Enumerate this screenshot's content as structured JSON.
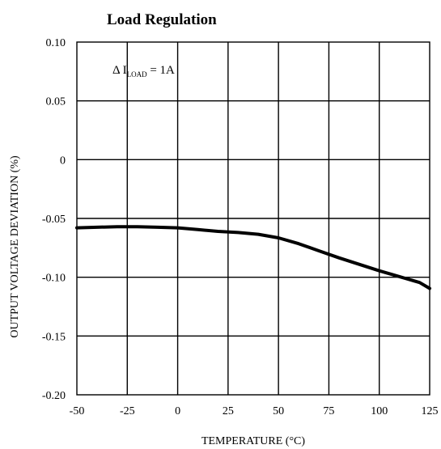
{
  "chart_data": {
    "type": "line",
    "title": "Load Regulation",
    "xlabel": "TEMPERATURE (°C)",
    "ylabel": "OUTPUT VOLTAGE DEVIATION (%)",
    "xlim": [
      -50,
      125
    ],
    "ylim": [
      -0.2,
      0.1
    ],
    "x_ticks": [
      -50,
      -25,
      0,
      25,
      50,
      75,
      100,
      125
    ],
    "x_tick_labels": [
      "-50",
      "-25",
      "0",
      "25",
      "50",
      "75",
      "100",
      "125"
    ],
    "y_ticks": [
      0.1,
      0.05,
      0,
      -0.05,
      -0.1,
      -0.15,
      -0.2
    ],
    "y_tick_labels": [
      "0.10",
      "0.05",
      "0",
      "-0.05",
      "-0.10",
      "-0.15",
      "-0.20"
    ],
    "grid": true,
    "annotation": {
      "prefix": "Δ I",
      "subscript": "LOAD",
      "suffix": " = 1A"
    },
    "series": [
      {
        "x": [
          -50,
          -40,
          -30,
          -20,
          -10,
          0,
          10,
          20,
          30,
          40,
          50,
          60,
          70,
          80,
          90,
          100,
          110,
          120,
          125
        ],
        "y": [
          -0.058,
          -0.0575,
          -0.057,
          -0.057,
          -0.0575,
          -0.058,
          -0.0595,
          -0.061,
          -0.062,
          -0.0635,
          -0.0665,
          -0.0715,
          -0.0775,
          -0.0835,
          -0.089,
          -0.0945,
          -0.0995,
          -0.1045,
          -0.1095
        ]
      }
    ]
  }
}
